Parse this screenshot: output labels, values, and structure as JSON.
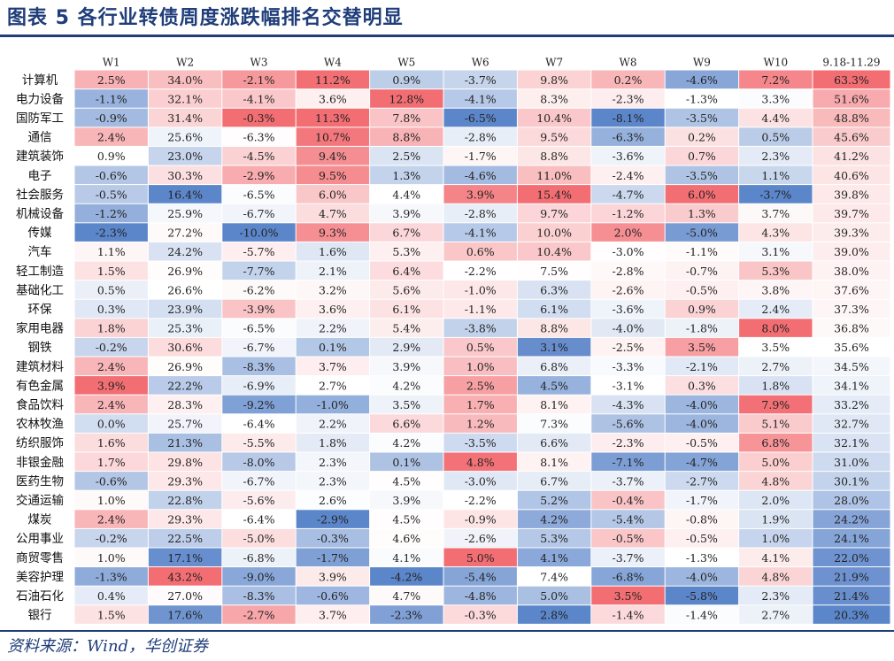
{
  "title": "图表 5   各行业转债周度涨跌幅排名交替明显",
  "source": "资料来源：Wind，华创证券",
  "colors": {
    "title": "#1f3d7a",
    "positive": "#f0545a",
    "negative": "#4a78c4",
    "neutral": "#ffffff"
  },
  "chart_data": {
    "type": "heatmap",
    "title": "图表 5   各行业转债周度涨跌幅排名交替明显",
    "columns": [
      "W1",
      "W2",
      "W3",
      "W4",
      "W5",
      "W6",
      "W7",
      "W8",
      "W9",
      "W10",
      "9.18-11.29"
    ],
    "rows": [
      {
        "industry": "计算机",
        "values": [
          "2.5%",
          "34.0%",
          "-2.1%",
          "11.2%",
          "0.9%",
          "-3.7%",
          "9.8%",
          "0.2%",
          "-4.6%",
          "7.2%",
          "63.3%"
        ]
      },
      {
        "industry": "电力设备",
        "values": [
          "-1.1%",
          "32.1%",
          "-4.1%",
          "3.6%",
          "12.8%",
          "-4.1%",
          "8.3%",
          "-2.3%",
          "-1.3%",
          "3.3%",
          "51.6%"
        ]
      },
      {
        "industry": "国防军工",
        "values": [
          "-0.9%",
          "31.4%",
          "-0.3%",
          "11.3%",
          "7.8%",
          "-6.5%",
          "10.4%",
          "-8.1%",
          "-3.5%",
          "4.4%",
          "48.8%"
        ]
      },
      {
        "industry": "通信",
        "values": [
          "2.4%",
          "25.6%",
          "-6.3%",
          "10.7%",
          "8.8%",
          "-2.8%",
          "9.5%",
          "-6.3%",
          "0.2%",
          "0.5%",
          "45.6%"
        ]
      },
      {
        "industry": "建筑装饰",
        "values": [
          "0.9%",
          "23.0%",
          "-4.5%",
          "9.4%",
          "2.5%",
          "-1.7%",
          "8.8%",
          "-3.6%",
          "0.7%",
          "2.3%",
          "41.2%"
        ]
      },
      {
        "industry": "电子",
        "values": [
          "-0.6%",
          "30.3%",
          "-2.9%",
          "9.5%",
          "1.3%",
          "-4.6%",
          "11.0%",
          "-2.4%",
          "-3.5%",
          "1.1%",
          "40.6%"
        ]
      },
      {
        "industry": "社会服务",
        "values": [
          "-0.5%",
          "16.4%",
          "-6.5%",
          "6.0%",
          "4.4%",
          "3.9%",
          "15.4%",
          "-4.7%",
          "6.0%",
          "-3.7%",
          "39.8%"
        ]
      },
      {
        "industry": "机械设备",
        "values": [
          "-1.2%",
          "25.9%",
          "-6.7%",
          "4.7%",
          "3.9%",
          "-2.8%",
          "9.7%",
          "-1.2%",
          "1.3%",
          "3.7%",
          "39.7%"
        ]
      },
      {
        "industry": "传媒",
        "values": [
          "-2.3%",
          "27.2%",
          "-10.0%",
          "9.3%",
          "6.7%",
          "-4.1%",
          "10.0%",
          "2.0%",
          "-5.0%",
          "4.3%",
          "39.3%"
        ]
      },
      {
        "industry": "汽车",
        "values": [
          "1.1%",
          "24.2%",
          "-5.7%",
          "1.6%",
          "5.3%",
          "0.6%",
          "10.4%",
          "-3.0%",
          "-1.1%",
          "3.1%",
          "39.0%"
        ]
      },
      {
        "industry": "轻工制造",
        "values": [
          "1.5%",
          "26.9%",
          "-7.7%",
          "2.1%",
          "6.4%",
          "-2.2%",
          "7.5%",
          "-2.8%",
          "-0.7%",
          "5.3%",
          "38.0%"
        ]
      },
      {
        "industry": "基础化工",
        "values": [
          "0.5%",
          "26.6%",
          "-6.2%",
          "3.2%",
          "5.6%",
          "-1.0%",
          "6.3%",
          "-2.6%",
          "-0.5%",
          "3.8%",
          "37.6%"
        ]
      },
      {
        "industry": "环保",
        "values": [
          "0.3%",
          "23.9%",
          "-3.9%",
          "3.6%",
          "6.1%",
          "-1.1%",
          "6.1%",
          "-3.6%",
          "0.9%",
          "2.4%",
          "37.3%"
        ]
      },
      {
        "industry": "家用电器",
        "values": [
          "1.8%",
          "25.3%",
          "-6.5%",
          "2.2%",
          "5.4%",
          "-3.8%",
          "8.8%",
          "-4.0%",
          "-1.8%",
          "8.0%",
          "36.8%"
        ]
      },
      {
        "industry": "钢铁",
        "values": [
          "-0.2%",
          "30.6%",
          "-6.7%",
          "0.1%",
          "2.9%",
          "0.5%",
          "3.1%",
          "-2.5%",
          "3.5%",
          "3.5%",
          "35.6%"
        ]
      },
      {
        "industry": "建筑材料",
        "values": [
          "2.4%",
          "26.9%",
          "-8.3%",
          "3.7%",
          "3.9%",
          "1.0%",
          "6.8%",
          "-3.3%",
          "-2.1%",
          "2.7%",
          "34.5%"
        ]
      },
      {
        "industry": "有色金属",
        "values": [
          "3.9%",
          "22.2%",
          "-6.9%",
          "2.7%",
          "4.2%",
          "2.5%",
          "4.5%",
          "-3.1%",
          "0.3%",
          "1.8%",
          "34.1%"
        ]
      },
      {
        "industry": "食品饮料",
        "values": [
          "2.4%",
          "28.3%",
          "-9.2%",
          "-1.0%",
          "3.5%",
          "1.7%",
          "8.1%",
          "-4.3%",
          "-4.0%",
          "7.9%",
          "33.2%"
        ]
      },
      {
        "industry": "农林牧渔",
        "values": [
          "0.0%",
          "25.7%",
          "-6.4%",
          "2.2%",
          "6.6%",
          "1.2%",
          "7.3%",
          "-5.6%",
          "-4.0%",
          "5.1%",
          "32.7%"
        ]
      },
      {
        "industry": "纺织服饰",
        "values": [
          "1.6%",
          "21.3%",
          "-5.5%",
          "1.8%",
          "4.2%",
          "-3.5%",
          "6.6%",
          "-2.3%",
          "-0.5%",
          "6.8%",
          "32.1%"
        ]
      },
      {
        "industry": "非银金融",
        "values": [
          "1.7%",
          "29.8%",
          "-8.0%",
          "2.3%",
          "0.1%",
          "4.8%",
          "8.1%",
          "-7.1%",
          "-4.7%",
          "5.0%",
          "31.0%"
        ]
      },
      {
        "industry": "医药生物",
        "values": [
          "-0.6%",
          "29.3%",
          "-6.7%",
          "2.3%",
          "4.5%",
          "-3.0%",
          "6.7%",
          "-3.7%",
          "-2.7%",
          "4.8%",
          "30.1%"
        ]
      },
      {
        "industry": "交通运输",
        "values": [
          "1.0%",
          "22.8%",
          "-5.6%",
          "2.6%",
          "3.9%",
          "-2.2%",
          "5.2%",
          "-0.4%",
          "-1.7%",
          "2.0%",
          "28.0%"
        ]
      },
      {
        "industry": "煤炭",
        "values": [
          "2.4%",
          "29.3%",
          "-6.4%",
          "-2.9%",
          "4.5%",
          "-0.9%",
          "4.2%",
          "-5.4%",
          "-0.8%",
          "1.9%",
          "24.2%"
        ]
      },
      {
        "industry": "公用事业",
        "values": [
          "-0.2%",
          "22.5%",
          "-5.0%",
          "-0.3%",
          "4.6%",
          "-2.6%",
          "5.3%",
          "-0.5%",
          "-0.5%",
          "1.0%",
          "24.1%"
        ]
      },
      {
        "industry": "商贸零售",
        "values": [
          "1.0%",
          "17.1%",
          "-6.8%",
          "-1.7%",
          "4.1%",
          "5.0%",
          "4.1%",
          "-3.7%",
          "-1.3%",
          "4.1%",
          "22.0%"
        ]
      },
      {
        "industry": "美容护理",
        "values": [
          "-1.3%",
          "43.2%",
          "-9.0%",
          "3.9%",
          "-4.2%",
          "-5.4%",
          "7.4%",
          "-6.8%",
          "-4.0%",
          "4.8%",
          "21.9%"
        ]
      },
      {
        "industry": "石油石化",
        "values": [
          "0.4%",
          "27.0%",
          "-8.3%",
          "-0.6%",
          "4.7%",
          "-4.8%",
          "5.0%",
          "3.5%",
          "-5.8%",
          "2.3%",
          "21.4%"
        ]
      },
      {
        "industry": "银行",
        "values": [
          "1.5%",
          "17.6%",
          "-2.7%",
          "3.7%",
          "-2.3%",
          "-0.3%",
          "2.8%",
          "-1.4%",
          "-1.4%",
          "2.7%",
          "20.3%"
        ]
      }
    ]
  }
}
